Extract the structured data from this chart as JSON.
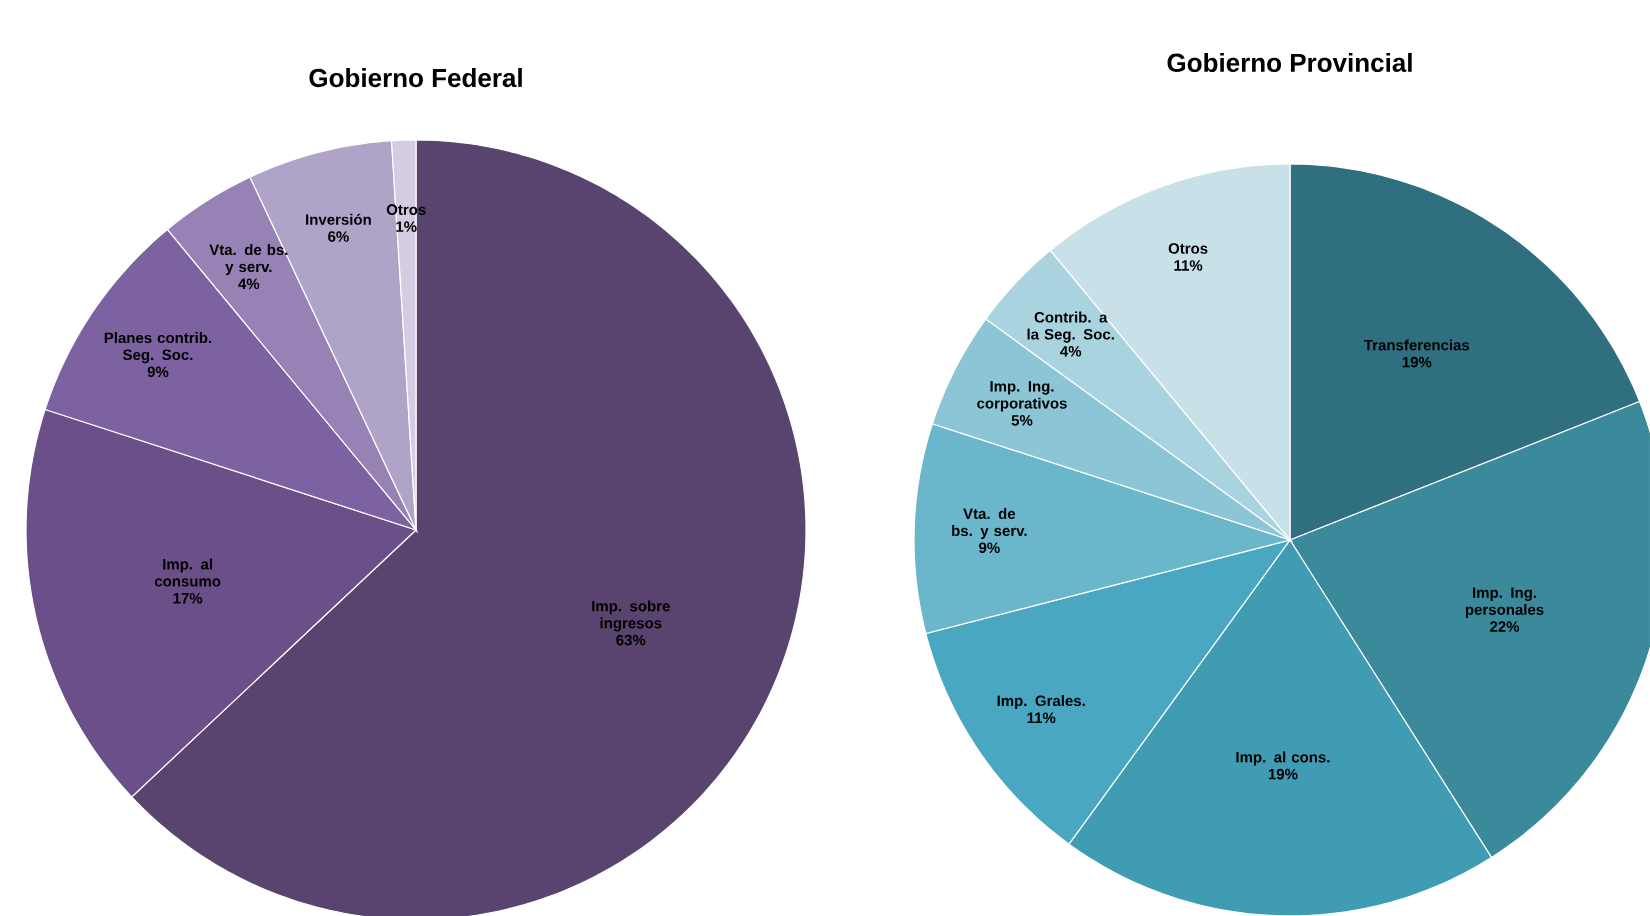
{
  "chart_data": [
    {
      "type": "pie",
      "title": "Gobierno Federal",
      "categories": [
        "Imp. sobre ingresos",
        "Imp. al consumo",
        "Planes contrib. Seg. Soc.",
        "Vta. de bs. y serv.",
        "Inversión",
        "Otros"
      ],
      "values": [
        63,
        17,
        9,
        4,
        6,
        1
      ],
      "value_labels": [
        "63%",
        "17%",
        "9%",
        "4%",
        "6%",
        "1%"
      ],
      "colors": [
        "#59436f",
        "#6a4f88",
        "#7c62a0",
        "#9782b6",
        "#b0a3c8",
        "#d3cce2"
      ]
    },
    {
      "type": "pie",
      "title": "Gobierno Provincial",
      "categories": [
        "Transferencias",
        "Imp. Ing. personales",
        "Imp. al cons.",
        "Imp. Grales.",
        "Vta. de bs. y serv.",
        "Imp. Ing. corporativos",
        "Contrib. a la Seg. Soc.",
        "Otros"
      ],
      "values": [
        19,
        22,
        19,
        11,
        9,
        5,
        4,
        11
      ],
      "value_labels": [
        "19%",
        "22%",
        "19%",
        "11%",
        "9%",
        "5%",
        "4%",
        "11%"
      ],
      "colors": [
        "#2f6f80",
        "#3a8a9c",
        "#3f9cb3",
        "#4aa7c2",
        "#6ab7cc",
        "#8cc6d6",
        "#a8d3df",
        "#c8e1e9"
      ]
    }
  ]
}
